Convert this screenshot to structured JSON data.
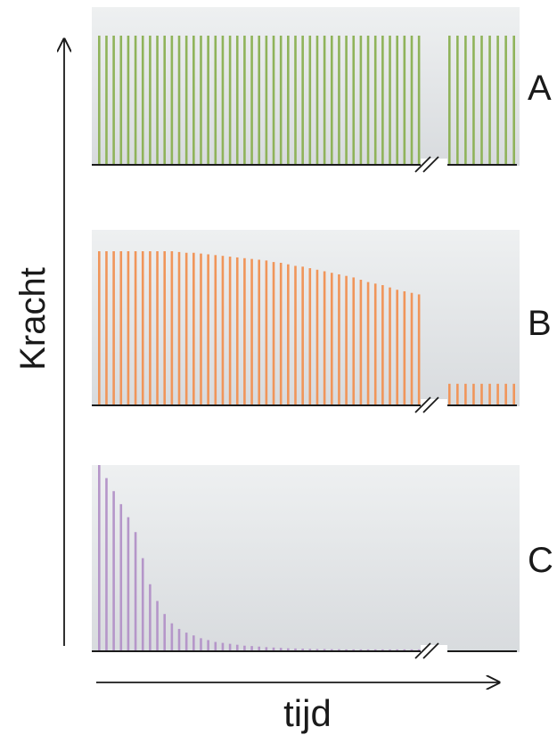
{
  "chart_data": [
    {
      "type": "bar",
      "panel_label": "A",
      "color": "#8fb35a",
      "bar_count_before_break": 45,
      "bar_count_after_break": 9,
      "values_before_break": [
        1,
        1,
        1,
        1,
        1,
        1,
        1,
        1,
        1,
        1,
        1,
        1,
        1,
        1,
        1,
        1,
        1,
        1,
        1,
        1,
        1,
        1,
        1,
        1,
        1,
        1,
        1,
        1,
        1,
        1,
        1,
        1,
        1,
        1,
        1,
        1,
        1,
        1,
        1,
        1,
        1,
        1,
        1,
        1,
        1
      ],
      "values_after_break": [
        1,
        1,
        1,
        1,
        1,
        1,
        1,
        1,
        1
      ]
    },
    {
      "type": "bar",
      "panel_label": "B",
      "color": "#f0955a",
      "values_before_break": [
        1.0,
        1.0,
        1.0,
        1.0,
        1.0,
        1.0,
        1.0,
        1.0,
        1.0,
        1.0,
        1.0,
        0.995,
        0.99,
        0.99,
        0.985,
        0.98,
        0.975,
        0.97,
        0.965,
        0.96,
        0.955,
        0.95,
        0.945,
        0.94,
        0.93,
        0.925,
        0.915,
        0.905,
        0.9,
        0.89,
        0.88,
        0.87,
        0.86,
        0.85,
        0.84,
        0.83,
        0.815,
        0.8,
        0.79,
        0.78,
        0.765,
        0.75,
        0.74,
        0.73,
        0.72
      ],
      "values_after_break": [
        0.14,
        0.14,
        0.14,
        0.14,
        0.14,
        0.14,
        0.14,
        0.14,
        0.14
      ]
    },
    {
      "type": "bar",
      "panel_label": "C",
      "color": "#b596c9",
      "values_before_break": [
        1.0,
        0.93,
        0.86,
        0.79,
        0.72,
        0.64,
        0.5,
        0.36,
        0.27,
        0.2,
        0.15,
        0.12,
        0.1,
        0.085,
        0.07,
        0.06,
        0.05,
        0.045,
        0.04,
        0.035,
        0.03,
        0.028,
        0.025,
        0.022,
        0.02,
        0.018,
        0.016,
        0.015,
        0.014,
        0.013,
        0.012,
        0.012,
        0.011,
        0.011,
        0.01,
        0.01,
        0.01,
        0.01,
        0.01,
        0.01,
        0.01,
        0.01,
        0.01,
        0.01,
        0.01
      ],
      "values_after_break": []
    }
  ],
  "axes": {
    "ylabel": "Kracht",
    "xlabel": "tijd"
  },
  "colors": {
    "panel_background": "#e4e6e8",
    "baseline": "#1a1a1a",
    "axis": "#1a1a1a"
  }
}
